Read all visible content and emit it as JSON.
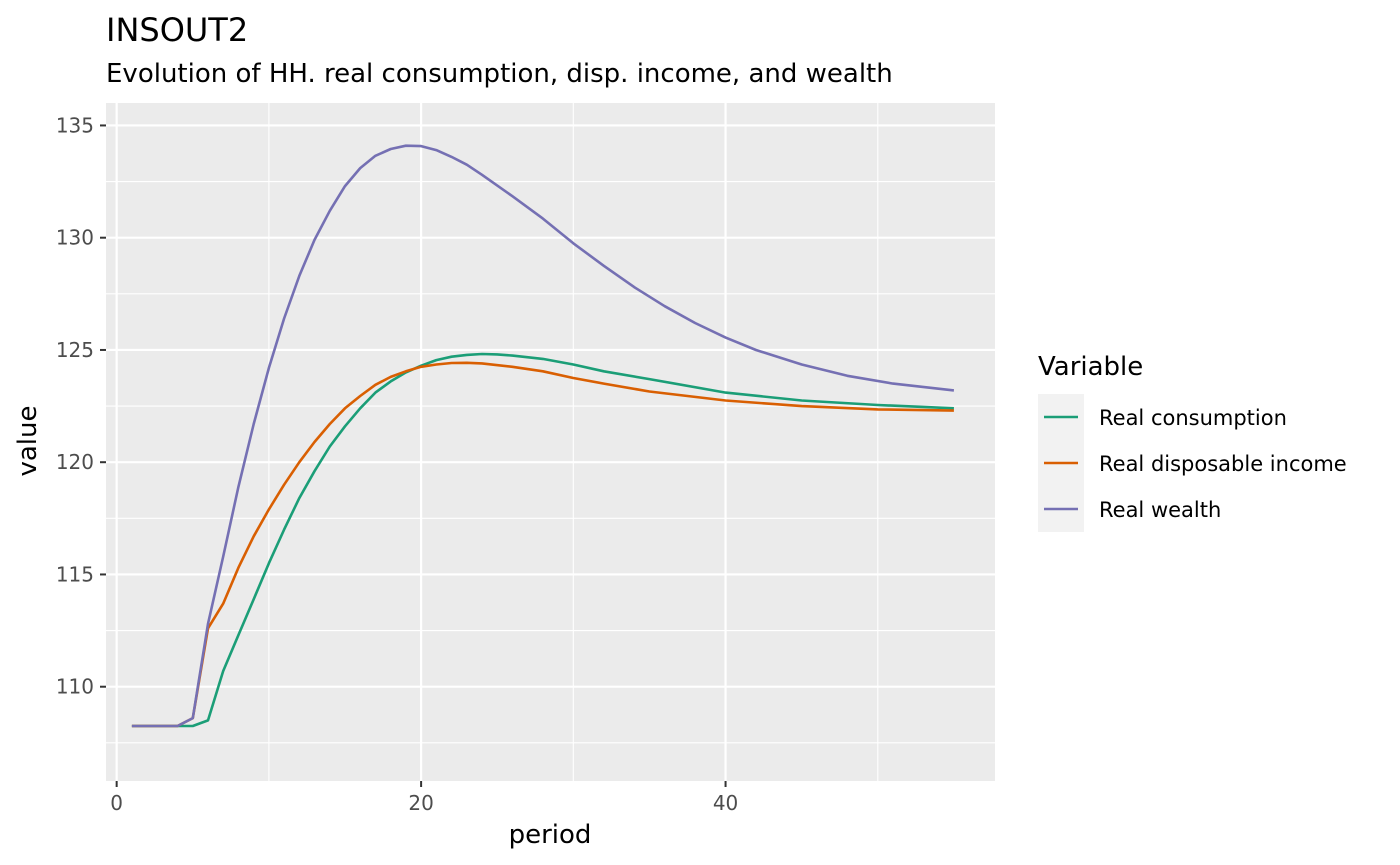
{
  "chart_data": {
    "type": "line",
    "title": "INSOUT2",
    "subtitle": "Evolution of HH. real consumption, disp. income, and wealth",
    "xlabel": "period",
    "ylabel": "value",
    "xlim": [
      -0.7,
      57.7
    ],
    "ylim": [
      105.8,
      136.0
    ],
    "x_ticks": [
      0,
      20,
      40
    ],
    "x_minor_ticks": [
      10,
      30,
      50
    ],
    "y_ticks": [
      110,
      115,
      120,
      125,
      130,
      135
    ],
    "y_minor_ticks": [
      107.5,
      112.5,
      117.5,
      122.5,
      127.5,
      132.5
    ],
    "grid": true,
    "legend_title": "Variable",
    "legend_position": "right",
    "background": "#ebebeb",
    "grid_color": "#ffffff",
    "series": [
      {
        "name": "Real consumption",
        "color": "#1b9e77",
        "points": [
          [
            1,
            108.25
          ],
          [
            4,
            108.25
          ],
          [
            5,
            108.25
          ],
          [
            6,
            108.5
          ],
          [
            7,
            110.7
          ],
          [
            8,
            112.3
          ],
          [
            9,
            113.9
          ],
          [
            10,
            115.5
          ],
          [
            11,
            117.0
          ],
          [
            12,
            118.4
          ],
          [
            13,
            119.6
          ],
          [
            14,
            120.7
          ],
          [
            15,
            121.6
          ],
          [
            16,
            122.4
          ],
          [
            17,
            123.1
          ],
          [
            18,
            123.6
          ],
          [
            19,
            124.0
          ],
          [
            20,
            124.3
          ],
          [
            21,
            124.55
          ],
          [
            22,
            124.7
          ],
          [
            23,
            124.78
          ],
          [
            24,
            124.82
          ],
          [
            25,
            124.8
          ],
          [
            26,
            124.75
          ],
          [
            28,
            124.6
          ],
          [
            30,
            124.35
          ],
          [
            32,
            124.05
          ],
          [
            35,
            123.7
          ],
          [
            40,
            123.1
          ],
          [
            45,
            122.75
          ],
          [
            50,
            122.55
          ],
          [
            55,
            122.4
          ]
        ]
      },
      {
        "name": "Real disposable income",
        "color": "#d95f02",
        "points": [
          [
            1,
            108.25
          ],
          [
            4,
            108.25
          ],
          [
            5,
            108.6
          ],
          [
            6,
            112.6
          ],
          [
            7,
            113.7
          ],
          [
            8,
            115.3
          ],
          [
            9,
            116.7
          ],
          [
            10,
            117.9
          ],
          [
            11,
            119.0
          ],
          [
            12,
            120.0
          ],
          [
            13,
            120.9
          ],
          [
            14,
            121.7
          ],
          [
            15,
            122.4
          ],
          [
            16,
            122.95
          ],
          [
            17,
            123.45
          ],
          [
            18,
            123.8
          ],
          [
            19,
            124.05
          ],
          [
            20,
            124.25
          ],
          [
            21,
            124.35
          ],
          [
            22,
            124.42
          ],
          [
            23,
            124.43
          ],
          [
            24,
            124.4
          ],
          [
            26,
            124.25
          ],
          [
            28,
            124.05
          ],
          [
            30,
            123.75
          ],
          [
            32,
            123.5
          ],
          [
            35,
            123.15
          ],
          [
            40,
            122.75
          ],
          [
            45,
            122.5
          ],
          [
            50,
            122.35
          ],
          [
            55,
            122.3
          ]
        ]
      },
      {
        "name": "Real wealth",
        "color": "#7570b3",
        "points": [
          [
            1,
            108.25
          ],
          [
            4,
            108.25
          ],
          [
            5,
            108.6
          ],
          [
            6,
            112.8
          ],
          [
            7,
            115.8
          ],
          [
            8,
            118.9
          ],
          [
            9,
            121.7
          ],
          [
            10,
            124.2
          ],
          [
            11,
            126.4
          ],
          [
            12,
            128.3
          ],
          [
            13,
            129.9
          ],
          [
            14,
            131.2
          ],
          [
            15,
            132.3
          ],
          [
            16,
            133.1
          ],
          [
            17,
            133.65
          ],
          [
            18,
            133.95
          ],
          [
            19,
            134.1
          ],
          [
            20,
            134.08
          ],
          [
            21,
            133.9
          ],
          [
            22,
            133.6
          ],
          [
            23,
            133.25
          ],
          [
            24,
            132.8
          ],
          [
            26,
            131.85
          ],
          [
            28,
            130.85
          ],
          [
            30,
            129.75
          ],
          [
            32,
            128.75
          ],
          [
            34,
            127.8
          ],
          [
            36,
            126.95
          ],
          [
            38,
            126.2
          ],
          [
            40,
            125.55
          ],
          [
            42,
            125.0
          ],
          [
            45,
            124.35
          ],
          [
            48,
            123.85
          ],
          [
            51,
            123.5
          ],
          [
            55,
            123.2
          ]
        ]
      }
    ]
  }
}
